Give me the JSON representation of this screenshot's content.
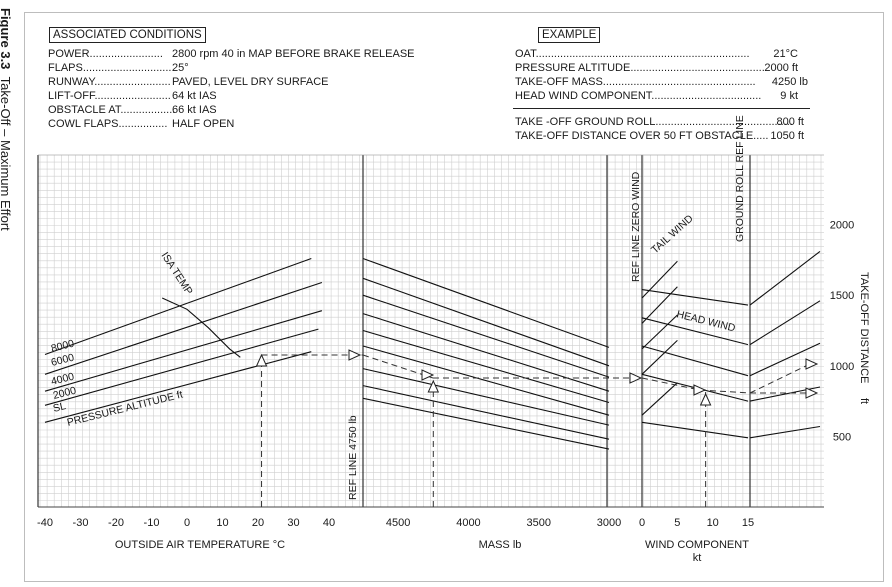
{
  "figure": {
    "number": "Figure 3.3",
    "title": "Take-Off – Maximum Effort"
  },
  "conditions": {
    "heading": "ASSOCIATED CONDITIONS",
    "rows": [
      {
        "label": "POWER........................",
        "value": "2800 rpm  40 in MAP BEFORE BRAKE RELEASE"
      },
      {
        "label": "FLAPS..............................",
        "value": "25°"
      },
      {
        "label": "RUNWAY.........................",
        "value": "PAVED, LEVEL DRY SURFACE"
      },
      {
        "label": "LIFT-OFF.........................",
        "value": "64 kt IAS"
      },
      {
        "label": "OBSTACLE AT..................",
        "value": "66 kt IAS"
      },
      {
        "label": "COWL FLAPS................",
        "value": "HALF OPEN"
      }
    ]
  },
  "example": {
    "heading": "EXAMPLE",
    "rows": [
      {
        "label": "OAT......................................................................",
        "value": "21°C"
      },
      {
        "label": "PRESSURE ALTITUDE............................................",
        "value": "2000 ft"
      },
      {
        "label": "TAKE-OFF MASS..................................................",
        "value": "4250 lb"
      },
      {
        "label": "HEAD WIND COMPONENT....................................",
        "value": "9 kt"
      }
    ],
    "results": [
      {
        "label": "TAKE -OFF GROUND ROLL.............................................",
        "value": "800 ft"
      },
      {
        "label": "TAKE-OFF DISTANCE OVER 50 FT OBSTACLE.....",
        "value": "1050 ft"
      }
    ]
  },
  "chart_data": {
    "type": "line",
    "panels": [
      {
        "name": "oat",
        "xlabel": "OUTSIDE AIR TEMPERATURE  °C",
        "xlim": [
          -40,
          40
        ],
        "xticks": [
          "-40",
          "-30",
          "-20",
          "-10",
          "0",
          "10",
          "20",
          "30",
          "40"
        ],
        "ref_label": "REF LINE  4750 lb",
        "isa_label": "ISA TEMP",
        "altitude_caption": "PRESSURE ALTITUDE  ft",
        "series": [
          {
            "name": "SL",
            "x": [
              -40,
              35
            ],
            "y": [
              600,
              1100
            ]
          },
          {
            "name": "2000",
            "x": [
              -40,
              37
            ],
            "y": [
              720,
              1260
            ]
          },
          {
            "name": "4000",
            "x": [
              -40,
              38
            ],
            "y": [
              820,
              1390
            ]
          },
          {
            "name": "6000",
            "x": [
              -40,
              38
            ],
            "y": [
              940,
              1590
            ]
          },
          {
            "name": "8000",
            "x": [
              -40,
              35
            ],
            "y": [
              1080,
              1760
            ]
          }
        ],
        "isa_curve": {
          "x": [
            -7,
            0,
            6,
            12,
            15
          ],
          "y": [
            1480,
            1400,
            1270,
            1120,
            1060
          ]
        }
      },
      {
        "name": "mass",
        "xlabel": "MASS   lb",
        "xlim": [
          4750,
          3000
        ],
        "xticks": [
          "4500",
          "4000",
          "3500",
          "3000"
        ],
        "guide_lines": [
          {
            "x": [
              4750,
              3000
            ],
            "y": [
              1760,
              1130
            ]
          },
          {
            "x": [
              4750,
              3000
            ],
            "y": [
              1620,
              1000
            ]
          },
          {
            "x": [
              4750,
              3000
            ],
            "y": [
              1500,
              920
            ]
          },
          {
            "x": [
              4750,
              3000
            ],
            "y": [
              1370,
              820
            ]
          },
          {
            "x": [
              4750,
              3000
            ],
            "y": [
              1250,
              740
            ]
          },
          {
            "x": [
              4750,
              3000
            ],
            "y": [
              1140,
              650
            ]
          },
          {
            "x": [
              4750,
              3000
            ],
            "y": [
              980,
              580
            ]
          },
          {
            "x": [
              4750,
              3000
            ],
            "y": [
              860,
              480
            ]
          },
          {
            "x": [
              4750,
              3000
            ],
            "y": [
              770,
              410
            ]
          }
        ]
      },
      {
        "name": "wind",
        "xlabel": "WIND COMPONENT",
        "xunit": "kt",
        "xlim": [
          0,
          15
        ],
        "xticks": [
          "0",
          "5",
          "10",
          "15"
        ],
        "ref_label": "REF LINE  ZERO WIND",
        "tail_label": "TAIL WIND",
        "head_label": "HEAD WIND",
        "head_wind_lines": [
          {
            "x": [
              0,
              15
            ],
            "y": [
              1540,
              1430
            ]
          },
          {
            "x": [
              0,
              15
            ],
            "y": [
              1340,
              1150
            ]
          },
          {
            "x": [
              0,
              15
            ],
            "y": [
              1140,
              930
            ]
          },
          {
            "x": [
              0,
              15
            ],
            "y": [
              940,
              750
            ]
          },
          {
            "x": [
              0,
              15
            ],
            "y": [
              600,
              490
            ]
          }
        ],
        "tail_wind_lines": [
          {
            "x": [
              0,
              5
            ],
            "y": [
              1480,
              1740
            ]
          },
          {
            "x": [
              0,
              5
            ],
            "y": [
              1300,
              1560
            ]
          },
          {
            "x": [
              0,
              5
            ],
            "y": [
              1120,
              1360
            ]
          },
          {
            "x": [
              0,
              5
            ],
            "y": [
              940,
              1180
            ]
          },
          {
            "x": [
              0,
              5
            ],
            "y": [
              650,
              880
            ]
          }
        ]
      },
      {
        "name": "ground_roll",
        "ref_label": "GROUND ROLL   REF LINE",
        "ylabel": "TAKE-OFF DISTANCE",
        "yunit": "ft",
        "ylim": [
          0,
          2500
        ],
        "yticks": [
          "500",
          "1000",
          "1500",
          "2000"
        ],
        "guide_lines": [
          {
            "x": [
              0,
              1
            ],
            "y": [
              1430,
              1810
            ]
          },
          {
            "x": [
              0,
              1
            ],
            "y": [
              1150,
              1460
            ]
          },
          {
            "x": [
              0,
              1
            ],
            "y": [
              930,
              1160
            ]
          },
          {
            "x": [
              0,
              1
            ],
            "y": [
              750,
              850
            ]
          },
          {
            "x": [
              0,
              1
            ],
            "y": [
              490,
              570
            ]
          }
        ]
      }
    ],
    "example_path": {
      "oat_c": 21,
      "pressure_altitude_ft": 2000,
      "mass_lb": 4250,
      "head_wind_kt": 9,
      "ground_roll_ft": 800,
      "obstacle_distance_ft": 1050
    }
  }
}
